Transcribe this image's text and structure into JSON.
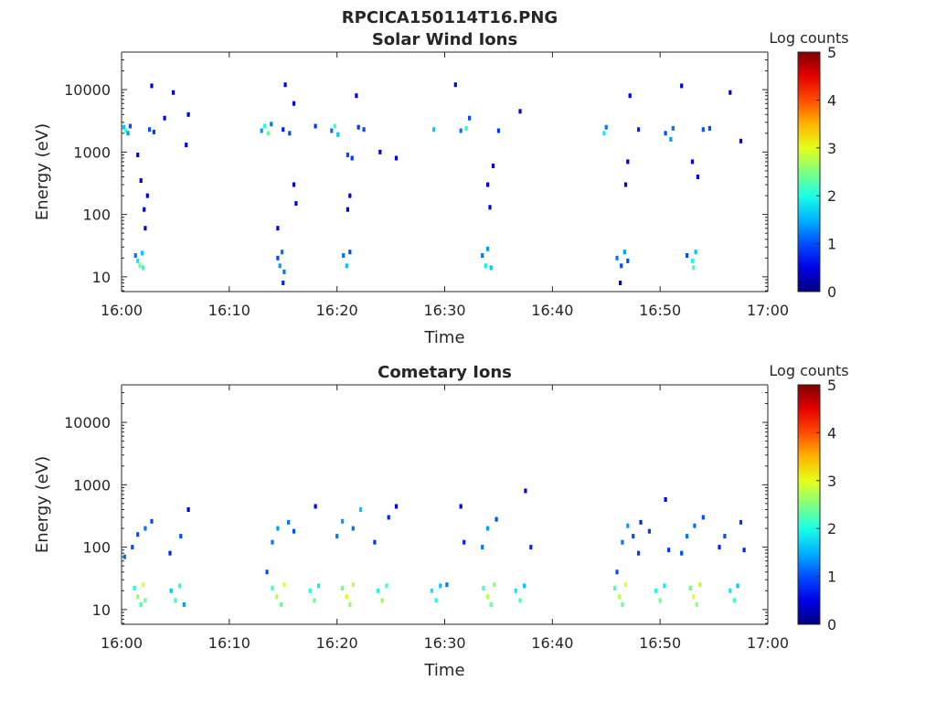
{
  "figure_title": "RPCICA150114T16.PNG",
  "chart_data": [
    {
      "type": "heatmap",
      "title": "Solar Wind Ions",
      "xlabel": "Time",
      "ylabel": "Energy (eV)",
      "x_ticks": [
        "16:00",
        "16:10",
        "16:20",
        "16:30",
        "16:40",
        "16:50",
        "17:00"
      ],
      "y_ticks": [
        {
          "value": 10,
          "label": "10"
        },
        {
          "value": 100,
          "label": "100"
        },
        {
          "value": 1000,
          "label": "1000"
        },
        {
          "value": 10000,
          "label": "10000"
        }
      ],
      "xlim": [
        "16:00",
        "17:00"
      ],
      "ylim": [
        5.8,
        40000
      ],
      "y_scale": "log",
      "colorbar": {
        "label": "Log counts",
        "range": [
          0,
          5
        ],
        "ticks": [
          "0",
          "1",
          "2",
          "3",
          "4",
          "5"
        ],
        "colormap": "jet"
      },
      "points": [
        [
          "16:00.2",
          2500,
          1.6
        ],
        [
          "16:00.4",
          2200,
          2.2
        ],
        [
          "16:00.6",
          2000,
          1.4
        ],
        [
          "16:00.8",
          2600,
          1.0
        ],
        [
          "16:01.3",
          22,
          1.2
        ],
        [
          "16:01.5",
          18,
          1.8
        ],
        [
          "16:01.7",
          15,
          2.4
        ],
        [
          "16:01.9",
          24,
          1.6
        ],
        [
          "16:02.0",
          14,
          2.0
        ],
        [
          "16:01.5",
          900,
          0.6
        ],
        [
          "16:01.8",
          350,
          0.6
        ],
        [
          "16:02.1",
          120,
          0.5
        ],
        [
          "16:02.2",
          60,
          0.6
        ],
        [
          "16:02.4",
          200,
          0.5
        ],
        [
          "16:02.6",
          2300,
          1.0
        ],
        [
          "16:03.0",
          2100,
          0.9
        ],
        [
          "16:02.8",
          11500,
          0.5
        ],
        [
          "16:04.0",
          3500,
          0.5
        ],
        [
          "16:04.8",
          9000,
          0.5
        ],
        [
          "16:06.0",
          1300,
          0.5
        ],
        [
          "16:06.2",
          4000,
          0.5
        ],
        [
          "16:13.0",
          2200,
          1.4
        ],
        [
          "16:13.3",
          2600,
          2.0
        ],
        [
          "16:13.6",
          2000,
          2.4
        ],
        [
          "16:13.9",
          2800,
          1.2
        ],
        [
          "16:14.5",
          20,
          1.0
        ],
        [
          "16:14.7",
          15,
          1.4
        ],
        [
          "16:14.9",
          25,
          1.2
        ],
        [
          "16:15.1",
          12,
          1.2
        ],
        [
          "16:15.0",
          8,
          0.8
        ],
        [
          "16:14.5",
          60,
          0.5
        ],
        [
          "16:15.0",
          2300,
          0.8
        ],
        [
          "16:15.6",
          2000,
          1.0
        ],
        [
          "16:16.0",
          6000,
          0.5
        ],
        [
          "16:15.2",
          12000,
          0.5
        ],
        [
          "16:16.2",
          150,
          0.5
        ],
        [
          "16:16.0",
          300,
          0.5
        ],
        [
          "16:18.0",
          2600,
          0.9
        ],
        [
          "16:19.5",
          2200,
          1.2
        ],
        [
          "16:19.8",
          2600,
          2.2
        ],
        [
          "16:20.1",
          1900,
          1.6
        ],
        [
          "16:20.6",
          22,
          1.2
        ],
        [
          "16:20.9",
          15,
          1.6
        ],
        [
          "16:21.2",
          25,
          1.0
        ],
        [
          "16:21.0",
          900,
          1.0
        ],
        [
          "16:21.4",
          800,
          0.9
        ],
        [
          "16:21.2",
          200,
          0.6
        ],
        [
          "16:21.0",
          120,
          0.5
        ],
        [
          "16:22.0",
          2500,
          0.9
        ],
        [
          "16:22.5",
          2300,
          1.0
        ],
        [
          "16:21.8",
          8000,
          0.5
        ],
        [
          "16:24.0",
          1000,
          0.5
        ],
        [
          "16:25.5",
          800,
          0.5
        ],
        [
          "16:29.0",
          2300,
          1.6
        ],
        [
          "16:31.5",
          2200,
          1.2
        ],
        [
          "16:32.0",
          2400,
          2.0
        ],
        [
          "16:32.3",
          3500,
          1.0
        ],
        [
          "16:33.5",
          22,
          1.2
        ],
        [
          "16:33.8",
          15,
          1.8
        ],
        [
          "16:34.0",
          28,
          1.4
        ],
        [
          "16:34.3",
          14,
          1.6
        ],
        [
          "16:34.0",
          300,
          0.5
        ],
        [
          "16:34.5",
          600,
          0.5
        ],
        [
          "16:34.2",
          130,
          0.5
        ],
        [
          "16:35.0",
          2200,
          0.9
        ],
        [
          "16:31.0",
          12000,
          0.5
        ],
        [
          "16:37.0",
          4500,
          0.5
        ],
        [
          "16:44.8",
          2000,
          1.8
        ],
        [
          "16:45.0",
          2500,
          1.2
        ],
        [
          "16:46.0",
          20,
          1.2
        ],
        [
          "16:46.4",
          15,
          1.0
        ],
        [
          "16:46.7",
          25,
          1.4
        ],
        [
          "16:47.0",
          18,
          1.0
        ],
        [
          "16:46.3",
          8,
          0.6
        ],
        [
          "16:47.0",
          700,
          0.5
        ],
        [
          "16:46.8",
          300,
          0.5
        ],
        [
          "16:47.2",
          8000,
          0.5
        ],
        [
          "16:48.0",
          2300,
          0.8
        ],
        [
          "16:50.5",
          2000,
          1.0
        ],
        [
          "16:51.0",
          1600,
          1.4
        ],
        [
          "16:51.2",
          2400,
          1.2
        ],
        [
          "16:52.5",
          22,
          1.0
        ],
        [
          "16:53.0",
          18,
          2.0
        ],
        [
          "16:53.3",
          25,
          1.6
        ],
        [
          "16:53.1",
          14,
          2.2
        ],
        [
          "16:53.0",
          700,
          0.5
        ],
        [
          "16:53.5",
          400,
          0.5
        ],
        [
          "16:54.0",
          2300,
          1.0
        ],
        [
          "16:54.6",
          2400,
          1.0
        ],
        [
          "16:52.0",
          11500,
          0.5
        ],
        [
          "16:56.5",
          9000,
          0.5
        ],
        [
          "16:57.5",
          1500,
          0.5
        ]
      ]
    },
    {
      "type": "heatmap",
      "title": "Cometary Ions",
      "xlabel": "Time",
      "ylabel": "Energy (eV)",
      "x_ticks": [
        "16:00",
        "16:10",
        "16:20",
        "16:30",
        "16:40",
        "16:50",
        "17:00"
      ],
      "y_ticks": [
        {
          "value": 10,
          "label": "10"
        },
        {
          "value": 100,
          "label": "100"
        },
        {
          "value": 1000,
          "label": "1000"
        },
        {
          "value": 10000,
          "label": "10000"
        }
      ],
      "xlim": [
        "16:00",
        "17:00"
      ],
      "ylim": [
        5.8,
        40000
      ],
      "y_scale": "log",
      "colorbar": {
        "label": "Log counts",
        "range": [
          0,
          5
        ],
        "ticks": [
          "0",
          "1",
          "2",
          "3",
          "4",
          "5"
        ],
        "colormap": "jet"
      },
      "points": [
        [
          "16:00.3",
          70,
          1.2
        ],
        [
          "16:01.0",
          100,
          1.0
        ],
        [
          "16:01.5",
          160,
          1.0
        ],
        [
          "16:02.2",
          200,
          1.2
        ],
        [
          "16:02.8",
          260,
          1.0
        ],
        [
          "16:01.2",
          22,
          2.0
        ],
        [
          "16:01.5",
          16,
          2.6
        ],
        [
          "16:01.8",
          12,
          2.2
        ],
        [
          "16:02.0",
          25,
          3.0
        ],
        [
          "16:02.2",
          14,
          2.4
        ],
        [
          "16:04.6",
          20,
          1.6
        ],
        [
          "16:05.0",
          14,
          2.2
        ],
        [
          "16:05.4",
          24,
          2.0
        ],
        [
          "16:05.8",
          12,
          1.4
        ],
        [
          "16:05.5",
          150,
          1.0
        ],
        [
          "16:06.2",
          400,
          0.6
        ],
        [
          "16:04.5",
          80,
          0.8
        ],
        [
          "16:13.5",
          40,
          1.0
        ],
        [
          "16:14.0",
          120,
          1.2
        ],
        [
          "16:14.5",
          200,
          1.4
        ],
        [
          "16:15.5",
          250,
          1.2
        ],
        [
          "16:16.0",
          180,
          1.0
        ],
        [
          "16:14.0",
          22,
          2.2
        ],
        [
          "16:14.4",
          16,
          2.8
        ],
        [
          "16:14.8",
          12,
          2.4
        ],
        [
          "16:15.1",
          25,
          3.0
        ],
        [
          "16:17.5",
          20,
          2.0
        ],
        [
          "16:17.9",
          14,
          2.4
        ],
        [
          "16:18.3",
          24,
          1.8
        ],
        [
          "16:18.0",
          450,
          0.6
        ],
        [
          "16:20.0",
          150,
          1.2
        ],
        [
          "16:20.5",
          260,
          1.4
        ],
        [
          "16:21.5",
          200,
          1.2
        ],
        [
          "16:22.2",
          400,
          1.6
        ],
        [
          "16:23.5",
          120,
          0.9
        ],
        [
          "16:20.5",
          22,
          2.4
        ],
        [
          "16:20.9",
          16,
          3.0
        ],
        [
          "16:21.2",
          12,
          2.6
        ],
        [
          "16:21.5",
          25,
          2.8
        ],
        [
          "16:23.8",
          20,
          2.0
        ],
        [
          "16:24.2",
          14,
          2.6
        ],
        [
          "16:24.6",
          24,
          2.2
        ],
        [
          "16:24.8",
          300,
          0.8
        ],
        [
          "16:25.5",
          450,
          0.6
        ],
        [
          "16:28.8",
          20,
          1.8
        ],
        [
          "16:29.2",
          14,
          2.0
        ],
        [
          "16:29.6",
          24,
          1.6
        ],
        [
          "16:30.2",
          25,
          1.2
        ],
        [
          "16:31.5",
          450,
          0.6
        ],
        [
          "16:31.8",
          120,
          0.8
        ],
        [
          "16:33.5",
          100,
          1.2
        ],
        [
          "16:34.0",
          200,
          1.4
        ],
        [
          "16:34.8",
          280,
          1.0
        ],
        [
          "16:33.6",
          22,
          2.2
        ],
        [
          "16:34.0",
          16,
          2.8
        ],
        [
          "16:34.3",
          12,
          2.4
        ],
        [
          "16:34.6",
          25,
          2.6
        ],
        [
          "16:36.6",
          20,
          1.8
        ],
        [
          "16:37.0",
          14,
          2.2
        ],
        [
          "16:37.4",
          24,
          1.6
        ],
        [
          "16:37.5",
          800,
          0.6
        ],
        [
          "16:38.0",
          100,
          0.8
        ],
        [
          "16:46.0",
          40,
          1.0
        ],
        [
          "16:46.5",
          120,
          1.2
        ],
        [
          "16:47.0",
          220,
          1.4
        ],
        [
          "16:47.5",
          150,
          1.0
        ],
        [
          "16:48.0",
          80,
          0.9
        ],
        [
          "16:45.8",
          22,
          2.2
        ],
        [
          "16:46.2",
          16,
          2.8
        ],
        [
          "16:46.5",
          12,
          2.4
        ],
        [
          "16:46.8",
          25,
          3.0
        ],
        [
          "16:48.2",
          250,
          0.8
        ],
        [
          "16:49.0",
          180,
          0.9
        ],
        [
          "16:49.6",
          20,
          2.0
        ],
        [
          "16:50.0",
          14,
          2.4
        ],
        [
          "16:50.4",
          24,
          1.8
        ],
        [
          "16:50.5",
          580,
          0.6
        ],
        [
          "16:50.8",
          90,
          0.9
        ],
        [
          "16:52.0",
          80,
          1.0
        ],
        [
          "16:52.5",
          150,
          1.2
        ],
        [
          "16:53.2",
          220,
          1.2
        ],
        [
          "16:54.0",
          300,
          1.0
        ],
        [
          "16:52.8",
          22,
          2.4
        ],
        [
          "16:53.1",
          16,
          3.0
        ],
        [
          "16:53.4",
          12,
          2.6
        ],
        [
          "16:53.7",
          25,
          2.8
        ],
        [
          "16:55.5",
          100,
          0.8
        ],
        [
          "16:56.0",
          150,
          1.0
        ],
        [
          "16:56.5",
          20,
          1.8
        ],
        [
          "16:56.9",
          14,
          2.2
        ],
        [
          "16:57.2",
          24,
          1.6
        ],
        [
          "16:57.5",
          250,
          0.9
        ],
        [
          "16:57.8",
          90,
          0.8
        ]
      ]
    }
  ]
}
